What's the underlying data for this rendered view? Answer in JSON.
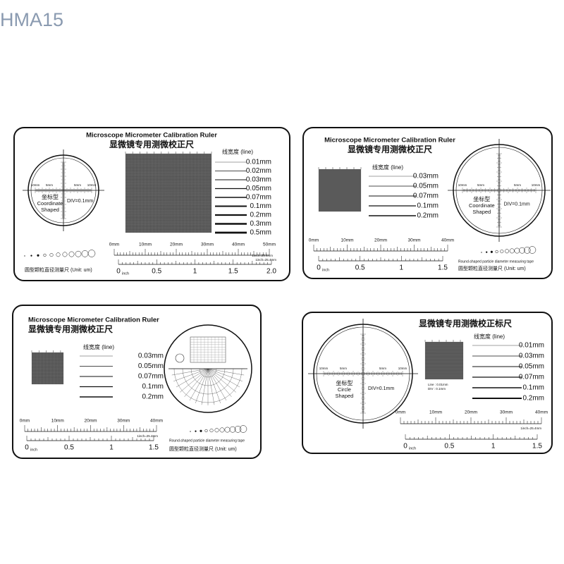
{
  "watermark": "HMA15",
  "cards": [
    {
      "title_en": "Microscope Micrometer Calibration Ruler",
      "title_cn": "显微镜专用测微校正尺",
      "line_heading": "线宽度 (line)",
      "line_widths": [
        "0.01mm",
        "0.02mm",
        "0.03mm",
        "0.05mm",
        "0.07mm",
        "0.1mm",
        "0.2mm",
        "0.3mm",
        "0.5mm"
      ],
      "reticle": {
        "label_cn": "坐标型",
        "label_en": [
          "Coordinate",
          "Shaped"
        ],
        "div": "DIV=0.1mm",
        "scale_labels": [
          "10mm",
          "5mm",
          "5mm",
          "10mm"
        ]
      },
      "mm_labels": [
        "0mm",
        "10mm",
        "20mm",
        "30mm",
        "40mm",
        "50mm"
      ],
      "scale_note": "1inch=25.4mm",
      "inch_labels": [
        "0",
        "0.5",
        "1",
        "1.5",
        "2.0"
      ],
      "inch_unit": "inch",
      "particle_caption_cn": "圆型颗粒直径测量尺 (Unit: um)"
    },
    {
      "title_en": "Microscope Micrometer Calibration Ruler",
      "title_cn": "显微镜专用测微校正尺",
      "line_heading": "线宽度 (line)",
      "line_widths": [
        "0.03mm",
        "0.05mm",
        "0.07mm",
        "0.1mm",
        "0.2mm"
      ],
      "reticle": {
        "label_cn": "坐标型",
        "label_en": [
          "Coordinate",
          "Shaped"
        ],
        "div": "DIV=0.1mm",
        "scale_labels": [
          "10mm",
          "5mm",
          "5mm",
          "10mm"
        ]
      },
      "mm_labels": [
        "0mm",
        "10mm",
        "20mm",
        "30mm",
        "40mm"
      ],
      "scale_note": "1inch=25.4mm",
      "inch_labels": [
        "0",
        "0.5",
        "1",
        "1.5"
      ],
      "inch_unit": "inch",
      "particle_caption_en": "Round-shaped particle diameter measuring tape",
      "particle_caption_cn": "圆型颗粒直径测量尺 (Unit: um)"
    },
    {
      "title_en": "Microscope Micrometer Calibration Ruler",
      "title_cn": "显微镜专用测微校正尺",
      "line_heading": "线宽度 (line)",
      "line_widths": [
        "0.03mm",
        "0.05mm",
        "0.07mm",
        "0.1mm",
        "0.2mm"
      ],
      "mm_labels": [
        "0mm",
        "10mm",
        "20mm",
        "30mm",
        "40mm"
      ],
      "scale_note": "1inch=25.4mm",
      "inch_labels": [
        "0",
        "0.5",
        "1",
        "1.5"
      ],
      "inch_unit": "inch",
      "particle_caption_en": "Round-shaped particle diameter measuring tape",
      "particle_caption_cn": "圆型颗粒直径测量尺 (Unit: um)"
    },
    {
      "title_cn": "显微镜专用测微校正标尺",
      "line_heading": "线宽度 (line)",
      "line_widths": [
        "0.01mm",
        "0.03mm",
        "0.05mm",
        "0.07mm",
        "0.1mm",
        "0.2mm"
      ],
      "grid_note": [
        "Line : 0.01mm",
        "DIV : 0.1mm"
      ],
      "reticle": {
        "label_cn": "坐标型",
        "label_en": [
          "Circle",
          "Shaped"
        ],
        "div": "DIV=0.1mm",
        "scale_labels": [
          "10mm",
          "5mm",
          "5mm",
          "10mm"
        ]
      },
      "mm_labels": [
        "0mm",
        "10mm",
        "20mm",
        "30mm",
        "40mm"
      ],
      "scale_note": "1inch=25.4mm",
      "inch_labels": [
        "0",
        "0.5",
        "1",
        "1.5"
      ],
      "inch_unit": "inch"
    }
  ]
}
